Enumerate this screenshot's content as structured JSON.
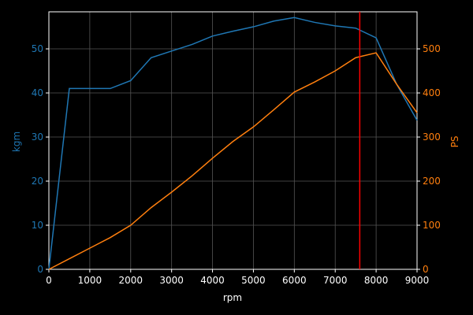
{
  "chart_data": {
    "type": "line",
    "xlabel": "rpm",
    "ylabel": "kgm",
    "y2label": "PS",
    "x": [
      0,
      500,
      1000,
      1500,
      2000,
      2500,
      3000,
      3500,
      4000,
      4500,
      5000,
      5500,
      6000,
      6500,
      7000,
      7500,
      8000,
      8500,
      9000
    ],
    "series": [
      {
        "name": "kgm",
        "color": "#1f77b4",
        "axis": "y",
        "values": [
          0,
          41,
          41,
          41,
          42.8,
          48,
          49.5,
          51,
          52.9,
          54,
          55,
          56.3,
          57.1,
          56,
          55.2,
          54.7,
          52.5,
          42,
          33.8
        ]
      },
      {
        "name": "PS",
        "color": "#ff7f0e",
        "axis": "y2",
        "values": [
          0,
          24,
          48,
          72,
          100,
          140,
          175,
          212,
          252,
          290,
          323,
          362,
          402,
          425,
          450,
          480,
          491,
          420,
          355
        ]
      }
    ],
    "vline": {
      "value": 7600,
      "color": "#ff0000"
    },
    "xlim": [
      0,
      9000
    ],
    "xticks": [
      0,
      1000,
      2000,
      3000,
      4000,
      5000,
      6000,
      7000,
      8000,
      9000
    ],
    "ylim": [
      0,
      58.4
    ],
    "yticks": [
      0,
      10,
      20,
      30,
      40,
      50
    ],
    "y2lim": [
      0,
      584
    ],
    "y2ticks": [
      0,
      100,
      200,
      300,
      400,
      500
    ],
    "grid": true
  }
}
